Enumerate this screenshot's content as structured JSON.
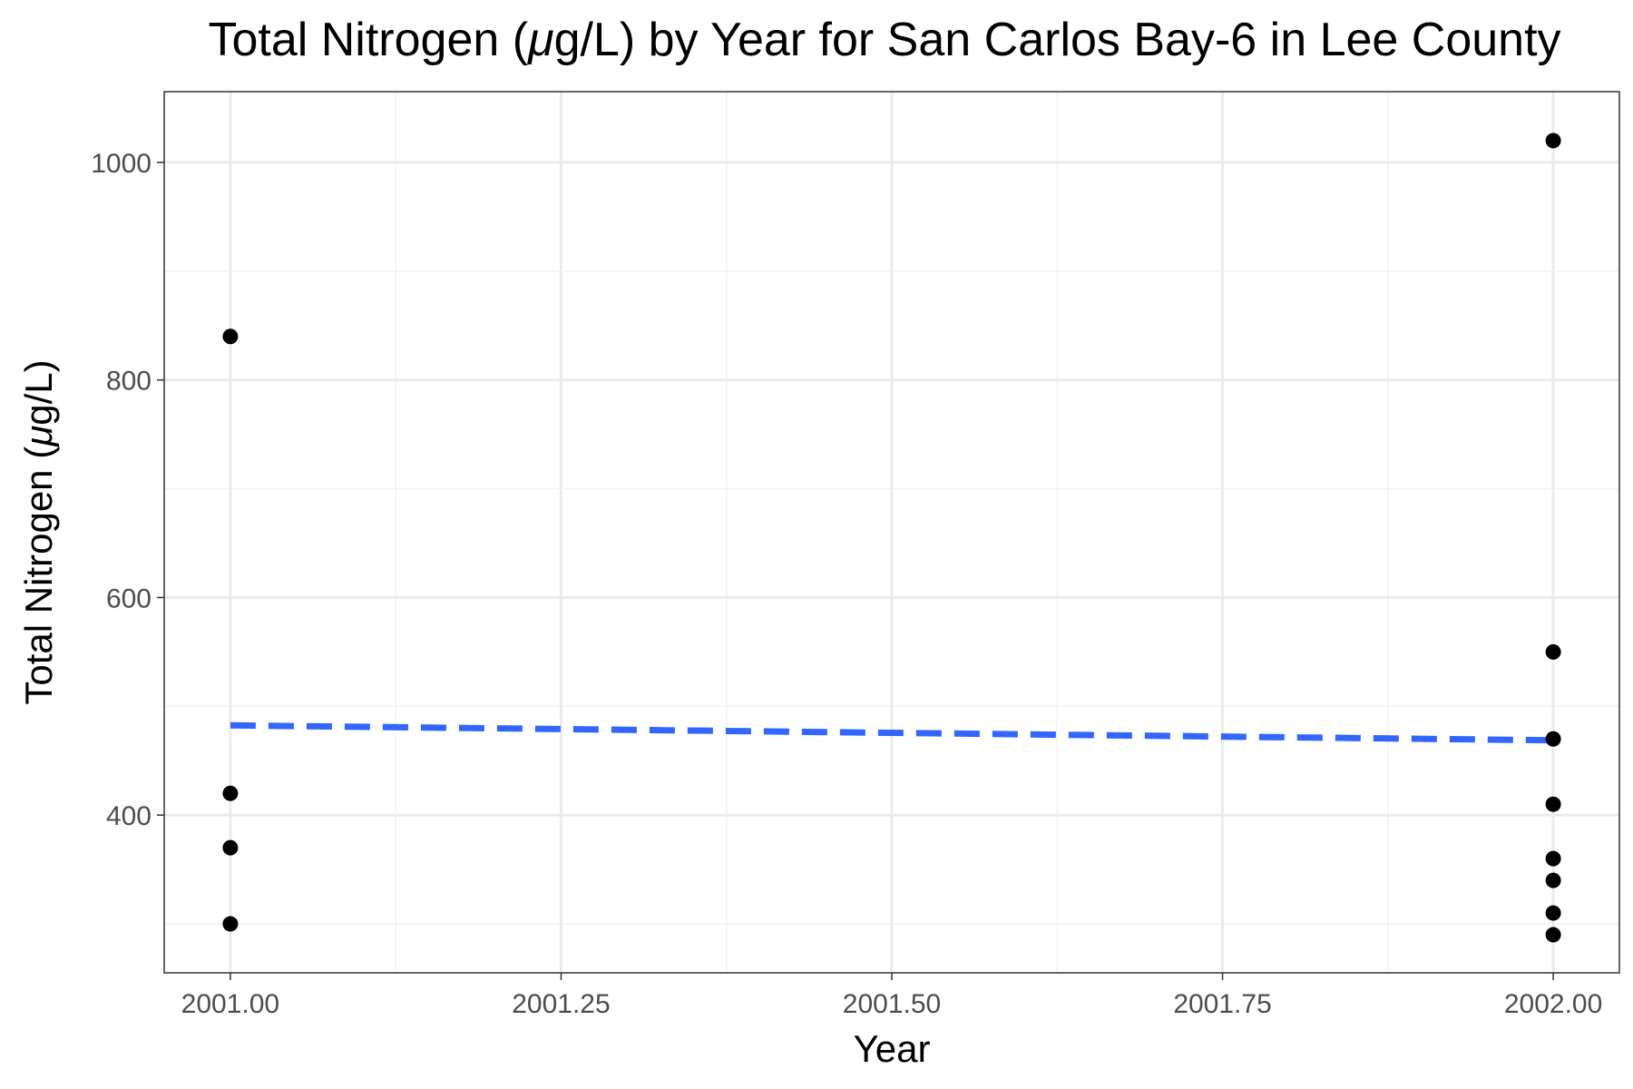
{
  "chart_data": {
    "type": "scatter",
    "title": "Total Nitrogen (μg/L) by Year for San Carlos Bay-6 in Lee County",
    "title_parts": [
      "Total Nitrogen (",
      "μ",
      "g/L) by Year for San Carlos Bay-6 in Lee County"
    ],
    "xlabel": "Year",
    "ylabel": "Total Nitrogen (μg/L)",
    "ylabel_parts": [
      "Total Nitrogen (",
      "μ",
      "g/L)"
    ],
    "xlim": [
      2000.95,
      2002.05
    ],
    "ylim": [
      255,
      1065
    ],
    "x_ticks": [
      2001.0,
      2001.25,
      2001.5,
      2001.75,
      2002.0
    ],
    "x_tick_labels": [
      "2001.00",
      "2001.25",
      "2001.50",
      "2001.75",
      "2002.00"
    ],
    "y_ticks": [
      400,
      600,
      800,
      1000
    ],
    "y_tick_labels": [
      "400",
      "600",
      "800",
      "1000"
    ],
    "y_minor_ticks": [
      300,
      500,
      700,
      900
    ],
    "x_minor_ticks": [
      2001.125,
      2001.375,
      2001.625,
      2001.875
    ],
    "grid": true,
    "points": [
      {
        "x": 2001,
        "y": 840
      },
      {
        "x": 2001,
        "y": 420
      },
      {
        "x": 2001,
        "y": 370
      },
      {
        "x": 2001,
        "y": 300
      },
      {
        "x": 2002,
        "y": 1020
      },
      {
        "x": 2002,
        "y": 550
      },
      {
        "x": 2002,
        "y": 470
      },
      {
        "x": 2002,
        "y": 410
      },
      {
        "x": 2002,
        "y": 360
      },
      {
        "x": 2002,
        "y": 340
      },
      {
        "x": 2002,
        "y": 310
      },
      {
        "x": 2002,
        "y": 290
      }
    ],
    "trend_line": {
      "x": [
        2001.0,
        2002.0
      ],
      "y": [
        482.5,
        468.75
      ],
      "style": "dashed",
      "color": "#3366ff"
    },
    "colors": {
      "points": "#000000",
      "trend": "#3366ff",
      "grid_major": "#ebebeb",
      "grid_minor": "#f2f2f2",
      "panel_border": "#333333"
    }
  }
}
